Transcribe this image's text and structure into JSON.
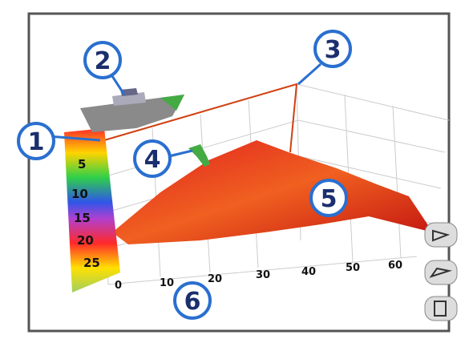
{
  "callouts": [
    "1",
    "2",
    "3",
    "4",
    "5",
    "6"
  ],
  "depth_scale": {
    "labels": [
      "5",
      "10",
      "15",
      "20",
      "25"
    ]
  },
  "distance_axis": {
    "labels": [
      "0",
      "10",
      "20",
      "30",
      "40",
      "50",
      "60"
    ]
  }
}
